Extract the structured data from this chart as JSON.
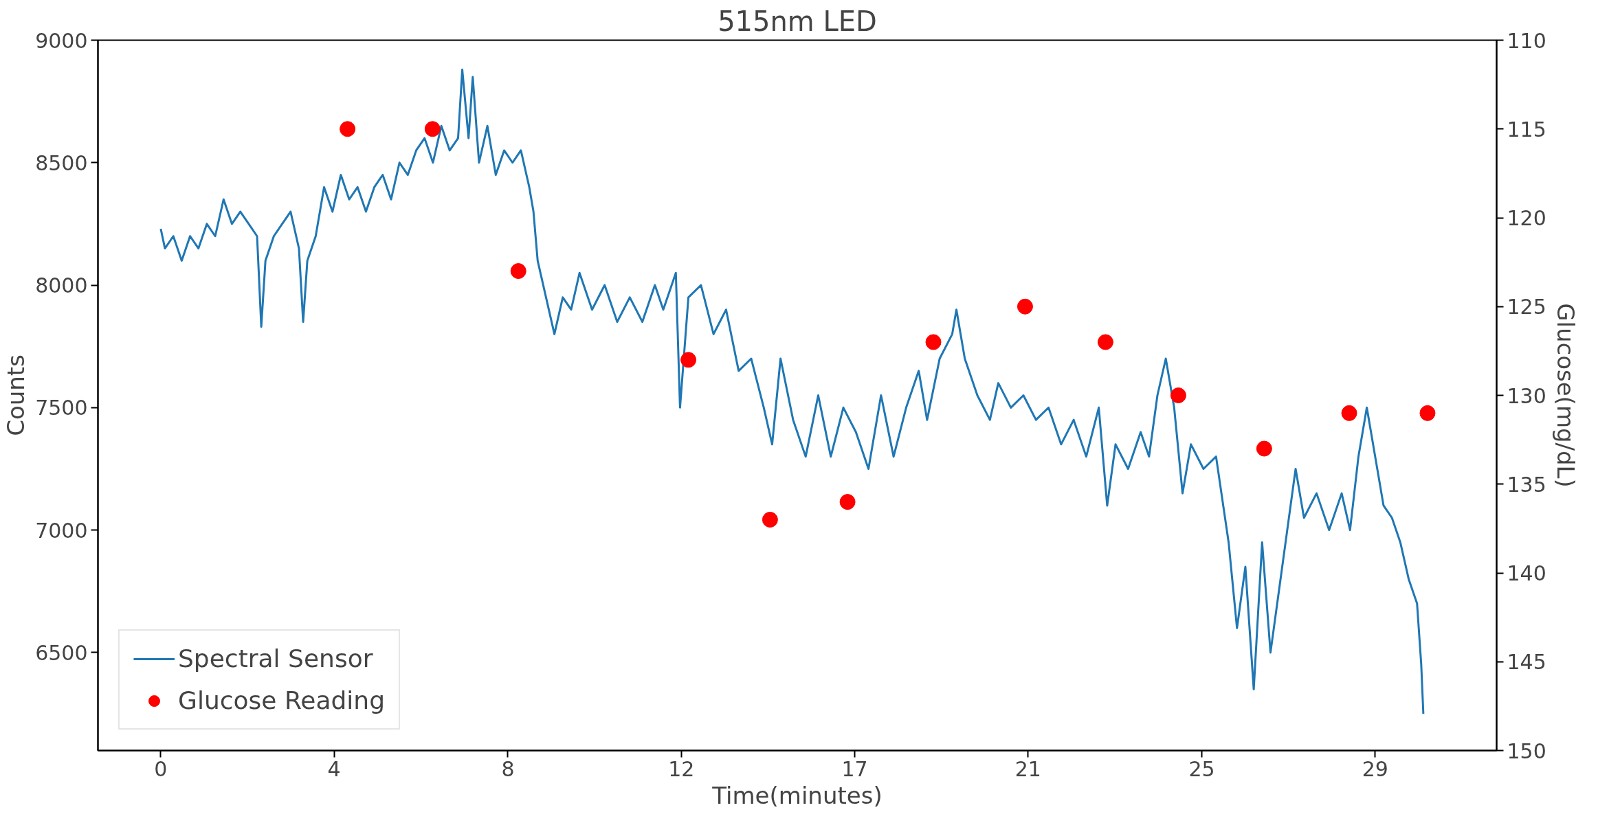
{
  "chart_data": {
    "type": "line",
    "title": "515nm LED",
    "xlabel": "Time(minutes)",
    "ylabel": "Counts",
    "y2label": "Glucose(mg/dL)",
    "xlim": [
      -1.5,
      31.9
    ],
    "xticks": [
      0,
      {
        "value": 4.14,
        "label": "4"
      },
      {
        "value": 8.29,
        "label": "8"
      },
      {
        "value": 12.43,
        "label": "12"
      },
      {
        "value": 16.57,
        "label": "17"
      },
      {
        "value": 20.71,
        "label": "21"
      },
      {
        "value": 24.86,
        "label": "25"
      },
      {
        "value": 29.0,
        "label": "29"
      }
    ],
    "ylim": [
      6100,
      9000
    ],
    "yticks": [
      6500,
      7000,
      7500,
      8000,
      8500,
      9000
    ],
    "y2lim": [
      150,
      110
    ],
    "y2ticks": [
      110,
      115,
      120,
      125,
      130,
      135,
      140,
      145,
      150
    ],
    "grid": false,
    "legend": "bottom left",
    "series": [
      {
        "name": "Spectral Sensor",
        "color": "#1f77b4",
        "marker": "none",
        "line_style": "solid",
        "x": [
          0,
          0.1,
          0.3,
          0.5,
          0.7,
          0.9,
          1.1,
          1.3,
          1.5,
          1.7,
          1.9,
          2.1,
          2.3,
          2.4,
          2.5,
          2.7,
          2.9,
          3.1,
          3.3,
          3.4,
          3.5,
          3.7,
          3.9,
          4.1,
          4.3,
          4.5,
          4.7,
          4.9,
          5.1,
          5.3,
          5.5,
          5.7,
          5.9,
          6.1,
          6.3,
          6.5,
          6.7,
          6.9,
          7.1,
          7.2,
          7.35,
          7.45,
          7.6,
          7.8,
          8.0,
          8.2,
          8.4,
          8.6,
          8.8,
          8.9,
          9.0,
          9.2,
          9.4,
          9.6,
          9.8,
          10.0,
          10.3,
          10.6,
          10.9,
          11.2,
          11.5,
          11.8,
          12.0,
          12.3,
          12.4,
          12.6,
          12.9,
          13.2,
          13.5,
          13.8,
          14.1,
          14.4,
          14.6,
          14.8,
          15.1,
          15.4,
          15.7,
          16.0,
          16.3,
          16.6,
          16.9,
          17.2,
          17.5,
          17.8,
          18.1,
          18.3,
          18.6,
          18.9,
          19.0,
          19.2,
          19.5,
          19.8,
          20.0,
          20.3,
          20.6,
          20.9,
          21.2,
          21.5,
          21.8,
          22.1,
          22.4,
          22.6,
          22.8,
          23.1,
          23.4,
          23.6,
          23.8,
          24.0,
          24.2,
          24.4,
          24.6,
          24.9,
          25.2,
          25.5,
          25.7,
          25.9,
          26.1,
          26.3,
          26.5,
          26.7,
          26.9,
          27.1,
          27.3,
          27.6,
          27.9,
          28.2,
          28.4,
          28.6,
          28.8,
          29.0,
          29.2,
          29.4,
          29.6,
          29.8,
          30.0,
          30.1,
          30.15
        ],
        "values": [
          8230,
          8150,
          8200,
          8100,
          8200,
          8150,
          8250,
          8200,
          8350,
          8250,
          8300,
          8250,
          8200,
          7830,
          8100,
          8200,
          8250,
          8300,
          8150,
          7850,
          8100,
          8200,
          8400,
          8300,
          8450,
          8350,
          8400,
          8300,
          8400,
          8450,
          8350,
          8500,
          8450,
          8550,
          8600,
          8500,
          8650,
          8550,
          8600,
          8880,
          8600,
          8850,
          8500,
          8650,
          8450,
          8550,
          8500,
          8550,
          8400,
          8300,
          8100,
          7950,
          7800,
          7950,
          7900,
          8050,
          7900,
          8000,
          7850,
          7950,
          7850,
          8000,
          7900,
          8050,
          7500,
          7950,
          8000,
          7800,
          7900,
          7650,
          7700,
          7500,
          7350,
          7700,
          7450,
          7300,
          7550,
          7300,
          7500,
          7400,
          7250,
          7550,
          7300,
          7500,
          7650,
          7450,
          7700,
          7800,
          7900,
          7700,
          7550,
          7450,
          7600,
          7500,
          7550,
          7450,
          7500,
          7350,
          7450,
          7300,
          7500,
          7100,
          7350,
          7250,
          7400,
          7300,
          7550,
          7700,
          7500,
          7150,
          7350,
          7250,
          7300,
          6950,
          6600,
          6850,
          6350,
          6950,
          6500,
          6750,
          7000,
          7250,
          7050,
          7150,
          7000,
          7150,
          7000,
          7300,
          7500,
          7300,
          7100,
          7050,
          6950,
          6800,
          6700,
          6450,
          6250
        ]
      },
      {
        "name": "Glucose Reading",
        "type": "scatter",
        "axis": "y2",
        "color": "#ff0000",
        "marker": "circle",
        "x": [
          4.46,
          6.49,
          8.54,
          12.6,
          14.55,
          16.4,
          18.45,
          20.64,
          22.56,
          24.3,
          26.35,
          28.38,
          30.25
        ],
        "values": [
          115,
          115,
          123,
          128,
          137,
          136,
          127,
          125,
          127,
          130,
          133,
          131,
          131
        ]
      }
    ]
  }
}
